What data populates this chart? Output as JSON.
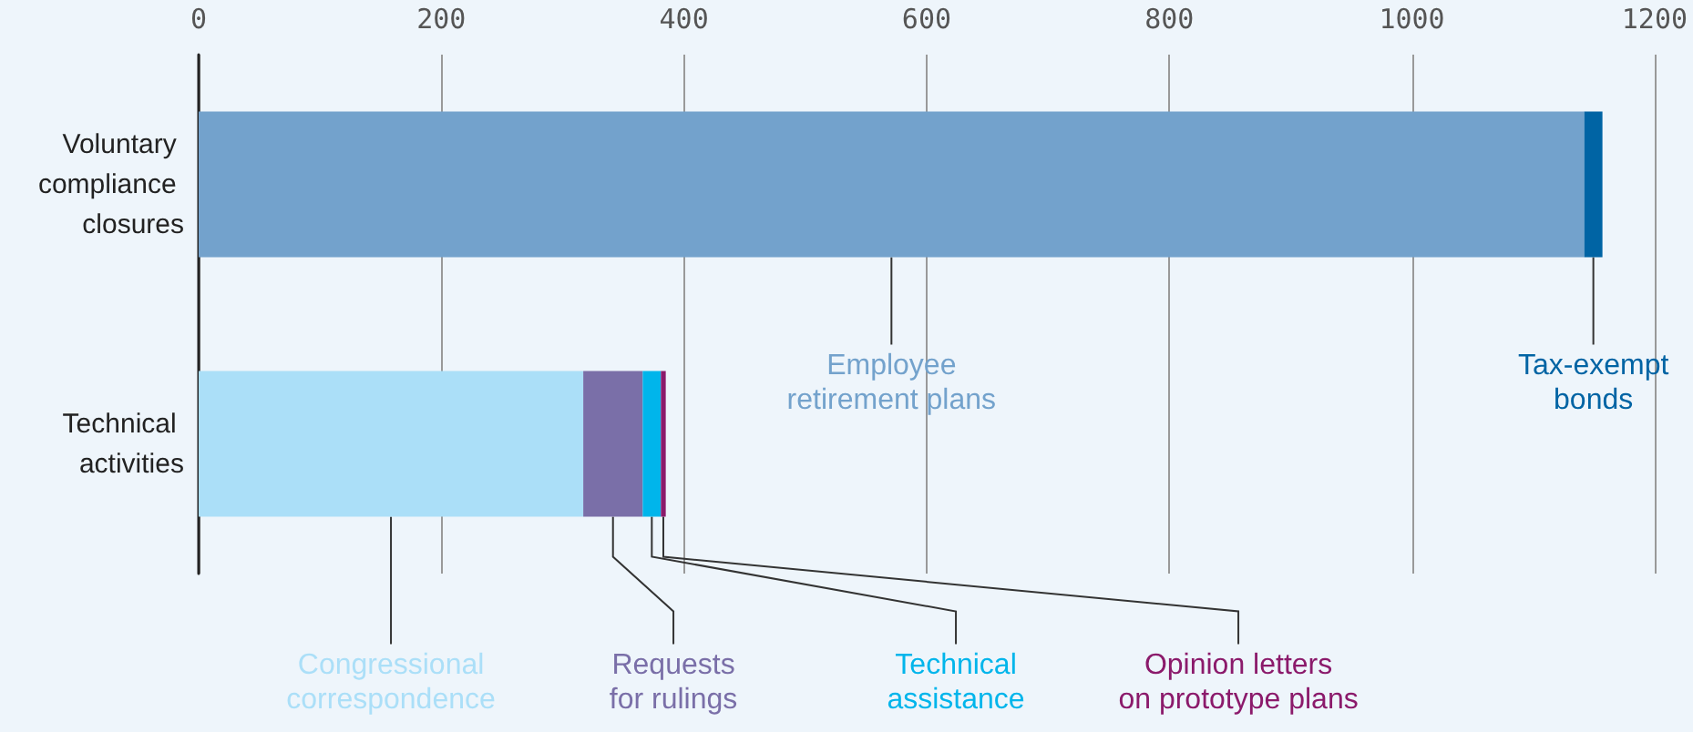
{
  "chart_data": {
    "type": "bar",
    "orientation": "horizontal",
    "stacked": true,
    "legend": false,
    "grid": "x",
    "categories": [
      "Voluntary compliance closures",
      "Technical activities"
    ],
    "xlim": [
      0,
      1200
    ],
    "xticks": [
      0,
      200,
      400,
      600,
      800,
      1000,
      1200
    ],
    "series": [
      {
        "name": "Employee retirement plans",
        "color": "#73a2cc",
        "values": [
          1142,
          null
        ]
      },
      {
        "name": "Tax-exempt bonds",
        "color": "#0064a4",
        "values": [
          15,
          null
        ]
      },
      {
        "name": "Congressional correspondence",
        "color": "#abdff8",
        "values": [
          null,
          317
        ]
      },
      {
        "name": "Requests for rulings",
        "color": "#7a6fa8",
        "values": [
          null,
          49
        ]
      },
      {
        "name": "Technical assistance",
        "color": "#00b5eb",
        "values": [
          null,
          15
        ]
      },
      {
        "name": "Opinion letters on prototype plans",
        "color": "#8b1a6b",
        "values": [
          null,
          4
        ]
      }
    ]
  }
}
